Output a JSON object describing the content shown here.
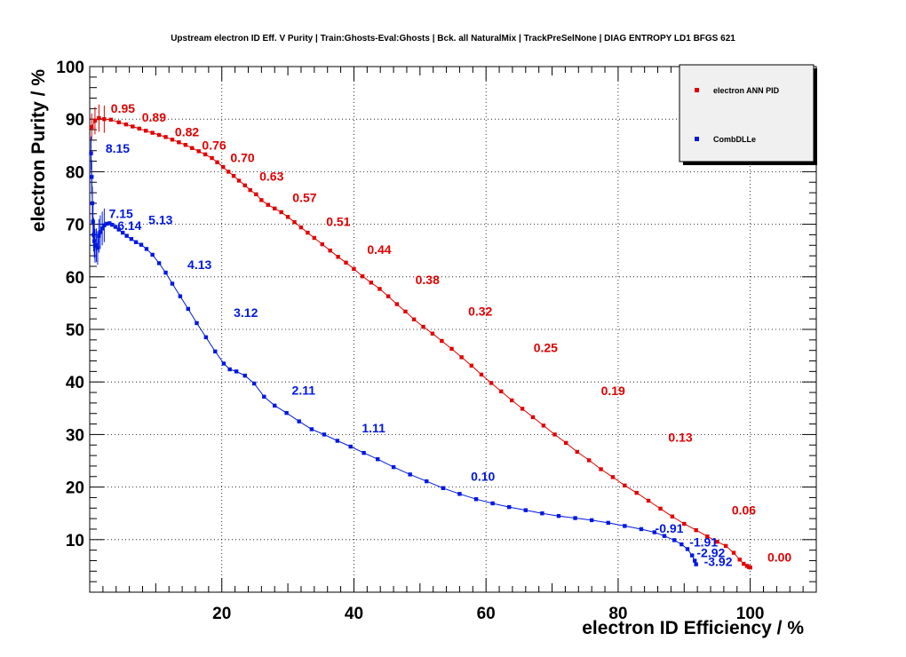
{
  "chart_data": {
    "type": "line",
    "title": "Upstream electron ID Eff. V Purity | Train:Ghosts-Eval:Ghosts | Bck. all NaturalMix | TrackPreSelNone | DIAG ENTROPY LD1 BFGS 621",
    "xlabel": "electron ID Efficiency / %",
    "ylabel": "electron Purity / %",
    "xlim": [
      0,
      110
    ],
    "ylim": [
      0,
      100
    ],
    "xticks": [
      20,
      40,
      60,
      80,
      100
    ],
    "yticks": [
      10,
      20,
      30,
      40,
      50,
      60,
      70,
      80,
      90,
      100
    ],
    "grid": true,
    "legend_position": "top-right",
    "series": [
      {
        "name": "electron ANN PID",
        "color": "#e00000",
        "x": [
          0.3,
          0.8,
          1.4,
          2.2,
          3.2,
          4.4,
          5.5,
          6.5,
          7.5,
          8.5,
          9.5,
          10.5,
          11.5,
          12.5,
          13.5,
          14.5,
          15.5,
          16.5,
          17.5,
          18.5,
          19.3,
          20.2,
          21.0,
          21.8,
          22.6,
          23.5,
          24.3,
          25.2,
          26.0,
          27.0,
          28.0,
          29.0,
          30.0,
          31.0,
          32.0,
          33.0,
          34.0,
          35.2,
          36.4,
          37.6,
          38.8,
          40.0,
          41.3,
          42.6,
          43.9,
          45.2,
          46.5,
          47.8,
          49.1,
          50.5,
          51.9,
          53.3,
          54.8,
          56.3,
          57.8,
          59.3,
          60.8,
          62.3,
          63.9,
          65.5,
          67.1,
          68.7,
          70.4,
          72.1,
          73.8,
          75.6,
          77.4,
          79.2,
          81.0,
          82.8,
          84.6,
          86.4,
          88.2,
          90.0,
          91.8,
          93.5,
          95.0,
          96.3,
          97.5,
          98.4,
          99.0,
          99.5,
          99.8,
          100.0
        ],
        "y": [
          88.5,
          89.7,
          90.2,
          90.0,
          89.9,
          89.4,
          89.0,
          88.6,
          88.2,
          87.8,
          87.4,
          87.0,
          86.6,
          86.1,
          85.6,
          85.1,
          84.5,
          83.9,
          83.3,
          82.6,
          81.8,
          80.9,
          80.0,
          79.2,
          78.3,
          77.4,
          76.5,
          75.7,
          74.6,
          73.7,
          73.0,
          72.3,
          71.4,
          70.4,
          69.4,
          68.4,
          67.4,
          66.2,
          65.0,
          63.8,
          62.7,
          61.5,
          60.1,
          58.9,
          57.7,
          56.3,
          54.8,
          53.4,
          51.9,
          50.5,
          49.2,
          47.8,
          46.3,
          44.7,
          43.1,
          41.4,
          39.8,
          38.2,
          36.5,
          34.9,
          33.3,
          31.7,
          30.0,
          28.4,
          26.7,
          25.1,
          23.4,
          21.9,
          20.3,
          18.9,
          17.4,
          15.9,
          14.4,
          13.0,
          11.8,
          10.6,
          9.6,
          8.8,
          7.5,
          6.2,
          5.4,
          5.0,
          4.8,
          4.7
        ]
      },
      {
        "name": "CombDLLe",
        "color": "#0018e0",
        "x": [
          0.2,
          0.3,
          0.4,
          0.5,
          0.6,
          0.7,
          0.8,
          1.0,
          1.2,
          1.4,
          1.6,
          1.9,
          2.2,
          2.6,
          3.0,
          3.4,
          3.9,
          4.4,
          5.0,
          5.6,
          6.3,
          7.0,
          7.8,
          8.6,
          9.5,
          10.5,
          11.5,
          12.5,
          13.7,
          14.9,
          16.2,
          17.6,
          19.0,
          20.3,
          21.2,
          22.2,
          23.5,
          24.9,
          26.4,
          28.0,
          29.8,
          31.7,
          33.6,
          35.5,
          37.5,
          39.5,
          41.5,
          43.6,
          46.0,
          48.5,
          51.0,
          53.5,
          56.0,
          58.5,
          61.0,
          63.5,
          66.0,
          68.5,
          71.0,
          73.5,
          76.0,
          78.5,
          81.0,
          83.5,
          85.5,
          87.0,
          88.5,
          89.6,
          90.5,
          91.2,
          91.6,
          91.8
        ],
        "y": [
          83.5,
          79.0,
          74.0,
          70.5,
          68.0,
          66.8,
          65.9,
          66.0,
          65.5,
          67.8,
          68.5,
          69.2,
          69.8,
          70.1,
          70.2,
          69.9,
          69.5,
          69.0,
          68.4,
          67.8,
          67.2,
          66.6,
          66.1,
          65.3,
          64.2,
          62.6,
          60.8,
          58.7,
          56.3,
          53.9,
          51.2,
          48.5,
          45.8,
          43.5,
          42.4,
          42.0,
          41.2,
          39.7,
          37.2,
          35.5,
          34.1,
          32.5,
          31.0,
          30.0,
          28.8,
          27.7,
          26.5,
          25.3,
          23.8,
          22.4,
          21.1,
          19.8,
          18.7,
          17.7,
          16.9,
          16.2,
          15.6,
          15.0,
          14.5,
          14.1,
          13.7,
          13.2,
          12.6,
          12.0,
          11.4,
          10.7,
          9.9,
          9.1,
          8.2,
          7.0,
          6.0,
          5.3
        ]
      }
    ],
    "labels": [
      {
        "series": 0,
        "text": "0.95",
        "x": 3.2,
        "y": 91.2
      },
      {
        "series": 0,
        "text": "0.89",
        "x": 7.9,
        "y": 89.5
      },
      {
        "series": 0,
        "text": "0.82",
        "x": 12.9,
        "y": 86.7
      },
      {
        "series": 0,
        "text": "0.76",
        "x": 17.0,
        "y": 84.2
      },
      {
        "series": 0,
        "text": "0.70",
        "x": 21.3,
        "y": 81.8
      },
      {
        "series": 0,
        "text": "0.63",
        "x": 25.7,
        "y": 78.3
      },
      {
        "series": 0,
        "text": "0.57",
        "x": 30.7,
        "y": 74.2
      },
      {
        "series": 0,
        "text": "0.51",
        "x": 35.8,
        "y": 69.7
      },
      {
        "series": 0,
        "text": "0.44",
        "x": 42.0,
        "y": 64.4
      },
      {
        "series": 0,
        "text": "0.38",
        "x": 49.3,
        "y": 58.6
      },
      {
        "series": 0,
        "text": "0.32",
        "x": 57.3,
        "y": 52.6
      },
      {
        "series": 0,
        "text": "0.25",
        "x": 67.2,
        "y": 45.7
      },
      {
        "series": 0,
        "text": "0.19",
        "x": 77.4,
        "y": 37.5
      },
      {
        "series": 0,
        "text": "0.13",
        "x": 87.6,
        "y": 28.6
      },
      {
        "series": 0,
        "text": "0.06",
        "x": 97.2,
        "y": 14.8
      },
      {
        "series": 0,
        "text": "0.00",
        "x": 102.6,
        "y": 5.8
      },
      {
        "series": 1,
        "text": "8.15",
        "x": 2.4,
        "y": 83.6
      },
      {
        "series": 1,
        "text": "7.15",
        "x": 2.9,
        "y": 71.2
      },
      {
        "series": 1,
        "text": "6.14",
        "x": 4.2,
        "y": 68.9
      },
      {
        "series": 1,
        "text": "5.13",
        "x": 8.9,
        "y": 70.0
      },
      {
        "series": 1,
        "text": "4.13",
        "x": 14.8,
        "y": 61.5
      },
      {
        "series": 1,
        "text": "3.12",
        "x": 21.8,
        "y": 52.4
      },
      {
        "series": 1,
        "text": "2.11",
        "x": 30.6,
        "y": 37.6
      },
      {
        "series": 1,
        "text": "1.11",
        "x": 41.2,
        "y": 30.4
      },
      {
        "series": 1,
        "text": "0.10",
        "x": 57.7,
        "y": 21.2
      },
      {
        "series": 1,
        "text": "-0.91",
        "x": 85.6,
        "y": 11.3
      },
      {
        "series": 1,
        "text": "-1.91",
        "x": 90.8,
        "y": 8.7
      },
      {
        "series": 1,
        "text": "-2.92",
        "x": 91.9,
        "y": 6.7
      },
      {
        "series": 1,
        "text": "-3.92",
        "x": 93.0,
        "y": 5.0
      }
    ]
  }
}
